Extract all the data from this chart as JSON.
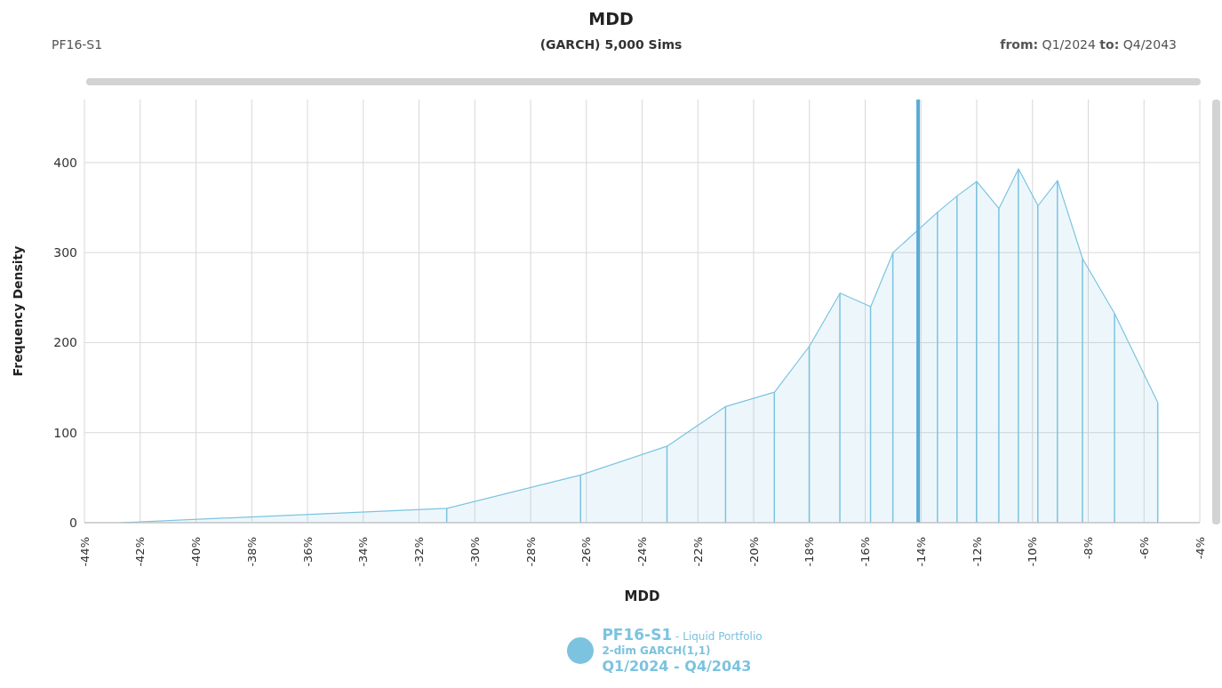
{
  "chart_data": {
    "type": "area",
    "title": "MDD",
    "subtitle": "(GARCH) 5,000 Sims",
    "xlabel": "MDD",
    "ylabel": "Frequency Density",
    "annotations": [
      "PF16-S1",
      "from: Q1/2024 to: Q4/2043",
      " - Liquid Portfolio",
      "2-dim GARCH(1,1)",
      "Q1/2024 - Q4/2043"
    ],
    "x": [
      -42.7,
      -31.0,
      -26.2,
      -23.1,
      -21.0,
      -19.25,
      -18.0,
      -16.9,
      -15.8,
      -15.0,
      -13.4,
      -12.7,
      -12.0,
      -11.2,
      -10.5,
      -9.8,
      -9.1,
      -8.2,
      -7.05,
      -5.5
    ],
    "series": [
      {
        "name": "PF16-S1",
        "color": "#7cc3e0",
        "values": [
          0,
          16,
          53,
          85,
          129,
          145,
          196,
          255,
          240,
          300,
          345,
          363,
          379,
          349,
          393,
          352,
          380,
          293,
          232,
          133
        ]
      },
      {
        "type": "bar",
        "color": "#7cc3e0",
        "values": [
          0,
          16,
          53,
          85,
          129,
          145,
          196,
          255,
          240,
          300,
          345,
          363,
          379,
          349,
          393,
          352,
          380,
          293,
          232,
          133
        ]
      }
    ],
    "xlim": [
      -44,
      -4
    ],
    "xticks": [
      {
        "value": -44,
        "label": "-44%"
      },
      {
        "value": -42,
        "label": "-42%"
      },
      {
        "value": -40,
        "label": "-40%"
      },
      {
        "value": -38,
        "label": "-38%"
      },
      {
        "value": -36,
        "label": "-36%"
      },
      {
        "value": -34,
        "label": "-34%"
      },
      {
        "value": -32,
        "label": "-32%"
      },
      {
        "value": -30,
        "label": "-30%"
      },
      {
        "value": -28,
        "label": "-28%"
      },
      {
        "value": -26,
        "label": "-26%"
      },
      {
        "value": -24,
        "label": "-24%"
      },
      {
        "value": -22,
        "label": "-22%"
      },
      {
        "value": -20,
        "label": "-20%"
      },
      {
        "value": -18,
        "label": "-18%"
      },
      {
        "value": -16,
        "label": "-16%"
      },
      {
        "value": -14,
        "label": "-14%"
      },
      {
        "value": -12,
        "label": "-12%"
      },
      {
        "value": -10,
        "label": "-10%"
      },
      {
        "value": -8,
        "label": "-8%"
      },
      {
        "value": -6,
        "label": "-6%"
      },
      {
        "value": -4,
        "label": "-4%"
      }
    ],
    "ylim": [
      0,
      470
    ],
    "yticks": [
      0,
      100,
      200,
      300,
      400
    ],
    "ref_lines": [
      {
        "axis": "x",
        "value": -14.1,
        "color": "#5aaad6"
      }
    ],
    "grid": true,
    "legend": "bottom"
  }
}
